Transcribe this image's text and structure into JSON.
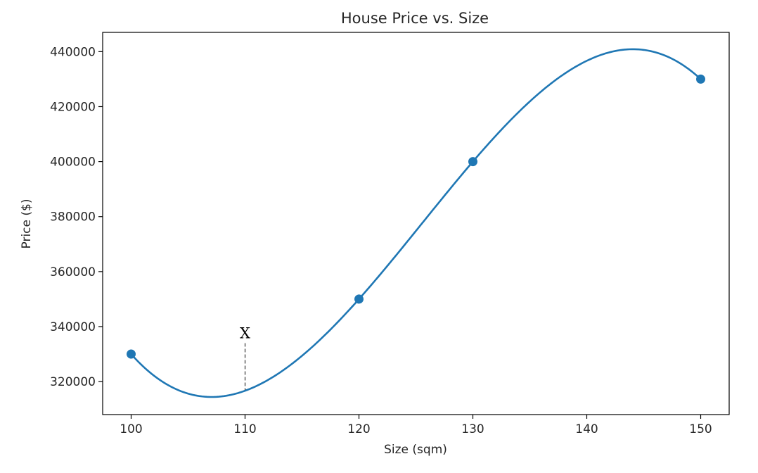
{
  "chart_data": {
    "type": "line",
    "title": "House Price vs. Size",
    "xlabel": "Size (sqm)",
    "ylabel": "Price ($)",
    "xlim": [
      97.5,
      152.5
    ],
    "ylim": [
      308000,
      447000
    ],
    "x_ticks": [
      100,
      110,
      120,
      130,
      140,
      150
    ],
    "y_ticks": [
      320000,
      340000,
      360000,
      380000,
      400000,
      420000,
      440000
    ],
    "grid": false,
    "colors": {
      "series": "#1f77b4",
      "axes": "#000000",
      "text": "#262626"
    },
    "series": [
      {
        "markers": true,
        "curve": "smooth-interpolation",
        "x": [
          100,
          120,
          130,
          150
        ],
        "y": [
          330000,
          350000,
          400000,
          430000
        ]
      }
    ],
    "annotations": [
      {
        "text": "X",
        "x": 110,
        "y": 335000,
        "y_to": 317000,
        "line_style": "dashed"
      }
    ]
  }
}
